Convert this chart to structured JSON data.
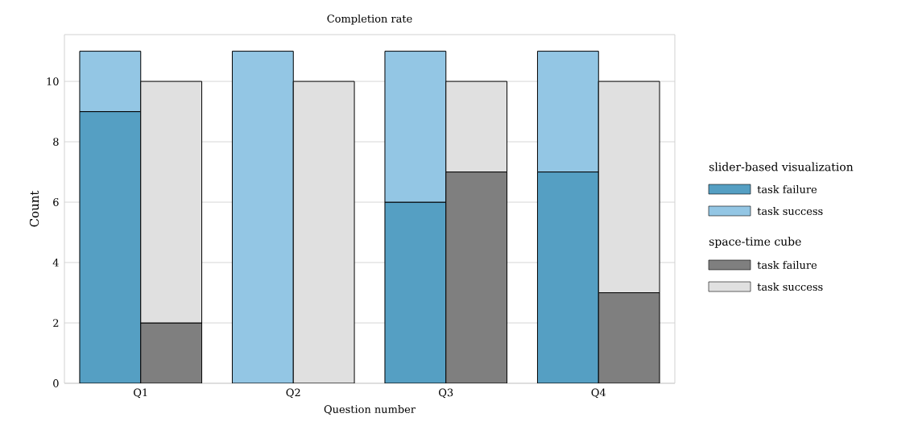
{
  "chart_data": {
    "type": "bar",
    "title": "Completion rate",
    "xlabel": "Question number",
    "ylabel": "Count",
    "categories": [
      "Q1",
      "Q2",
      "Q3",
      "Q4"
    ],
    "legend_title": [
      "slider-based visualization",
      "space-time cube"
    ],
    "series": [
      {
        "name": "task failure",
        "color": "#559fc3",
        "values": [
          9,
          0,
          6,
          7
        ],
        "base": [
          0,
          null,
          0,
          0
        ]
      },
      {
        "name": "task success",
        "color": "#93c6e4",
        "values": [
          2,
          11,
          5,
          4
        ],
        "base": [
          9,
          0,
          6,
          7
        ]
      },
      {
        "name": "task failure",
        "color": "#7f7f7f",
        "values": [
          2,
          0,
          7,
          3
        ],
        "base": [
          0,
          null,
          0,
          0
        ]
      },
      {
        "name": "task success",
        "color": "#e0e0e0",
        "values": [
          8,
          10,
          3,
          7
        ],
        "base": [
          2,
          0,
          7,
          3
        ]
      }
    ],
    "ylim": [
      0,
      11.55
    ],
    "yticks": [
      0,
      2,
      4,
      6,
      8,
      10
    ],
    "grid": "y",
    "legend": "right"
  }
}
